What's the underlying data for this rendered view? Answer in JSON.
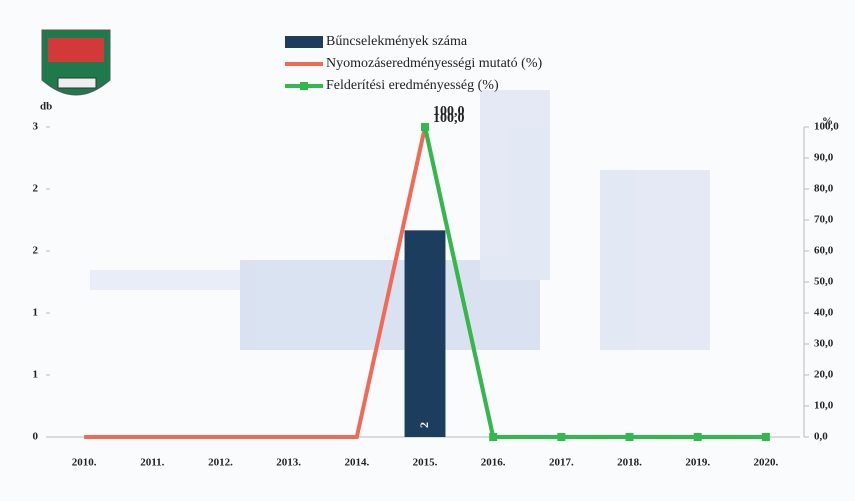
{
  "chart_data": {
    "type": "bar-line",
    "y_label": "db",
    "y2_label": "%",
    "categories": [
      "2010.",
      "2011.",
      "2012.",
      "2013.",
      "2014.",
      "2015.",
      "2016.",
      "2017.",
      "2018.",
      "2019.",
      "2020."
    ],
    "ylim": [
      0,
      3
    ],
    "yticks": [
      0,
      {
        "value": 0.6,
        "label": "1"
      },
      {
        "value": 1.2,
        "label": "1"
      },
      {
        "value": 1.8,
        "label": "2"
      },
      {
        "value": 2.4,
        "label": "2"
      },
      3
    ],
    "y2lim": [
      0,
      100
    ],
    "y2ticks": [
      {
        "value": 0,
        "label": "0,0"
      },
      {
        "value": 10,
        "label": "10,0"
      },
      {
        "value": 20,
        "label": "20,0"
      },
      {
        "value": 30,
        "label": "30,0"
      },
      {
        "value": 40,
        "label": "40,0"
      },
      {
        "value": 50,
        "label": "50,0"
      },
      {
        "value": 60,
        "label": "60,0"
      },
      {
        "value": 70,
        "label": "70,0"
      },
      {
        "value": 80,
        "label": "80,0"
      },
      {
        "value": 90,
        "label": "90,0"
      },
      {
        "value": 100,
        "label": "100,0"
      }
    ],
    "series": [
      {
        "name": "Bűncselekmények száma",
        "type": "bar",
        "color": "#1d3d5e",
        "values": [
          null,
          null,
          null,
          null,
          null,
          2,
          null,
          null,
          null,
          null,
          null
        ]
      },
      {
        "name": "Nyomozáseredményességi mutató (%)",
        "type": "line",
        "axis": "y2",
        "color": "#f06a55",
        "values": [
          0,
          0,
          0,
          0,
          0,
          100,
          0,
          0,
          0,
          0,
          0
        ],
        "value_labels": [
          null,
          null,
          null,
          null,
          null,
          "100,0",
          null,
          null,
          null,
          null,
          null
        ]
      },
      {
        "name": "Felderítési eredményesség (%)",
        "type": "line",
        "axis": "y2",
        "color": "#2fba4c",
        "markers": true,
        "values": [
          null,
          null,
          null,
          null,
          null,
          100,
          0,
          0,
          0,
          0,
          0
        ],
        "value_labels": [
          null,
          null,
          null,
          null,
          null,
          "100,0",
          null,
          null,
          null,
          null,
          null
        ]
      }
    ]
  }
}
